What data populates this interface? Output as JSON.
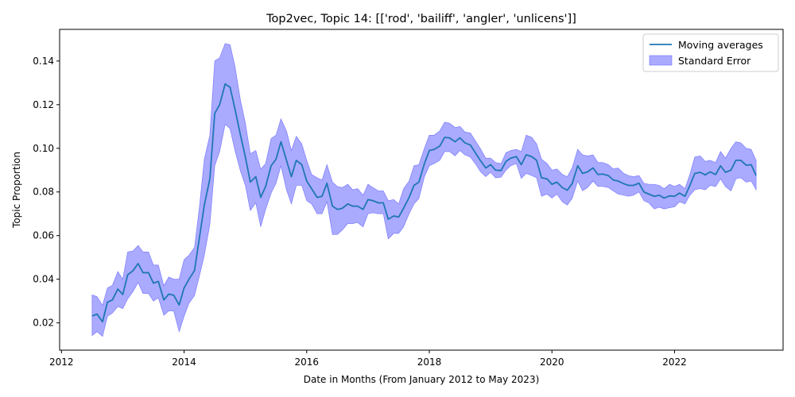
{
  "chart_data": {
    "type": "line",
    "title": "Top2vec, Topic 14: [['rod', 'bailiff', 'angler', 'unlicens']]",
    "xlabel": "Date in Months (From January 2012 to May 2023)",
    "ylabel": "Topic Proportion",
    "xlim": [
      2011.97,
      2023.77
    ],
    "ylim": [
      0.0075,
      0.1545
    ],
    "xticks": [
      2012,
      2014,
      2016,
      2018,
      2020,
      2022
    ],
    "yticks": [
      0.02,
      0.04,
      0.06,
      0.08,
      0.1,
      0.12,
      0.14
    ],
    "ytick_labels": [
      "0.02",
      "0.04",
      "0.06",
      "0.08",
      "0.10",
      "0.12",
      "0.14"
    ],
    "grid": false,
    "legend_position": "top-right",
    "colors": {
      "line": "#1f77b4",
      "band": "#aaaaff",
      "band_edge": "#7070ff"
    },
    "series": [
      {
        "name": "Moving averages",
        "x": [
          2012.5,
          2012.58,
          2012.67,
          2012.75,
          2012.83,
          2012.92,
          2013.0,
          2013.08,
          2013.17,
          2013.25,
          2013.33,
          2013.42,
          2013.5,
          2013.58,
          2013.67,
          2013.75,
          2013.83,
          2013.92,
          2014.0,
          2014.08,
          2014.17,
          2014.25,
          2014.33,
          2014.42,
          2014.5,
          2014.58,
          2014.67,
          2014.75,
          2014.83,
          2014.92,
          2015.0,
          2015.08,
          2015.17,
          2015.25,
          2015.33,
          2015.42,
          2015.5,
          2015.58,
          2015.67,
          2015.75,
          2015.83,
          2015.92,
          2016.0,
          2016.08,
          2016.17,
          2016.25,
          2016.33,
          2016.42,
          2016.5,
          2016.58,
          2016.67,
          2016.75,
          2016.83,
          2016.92,
          2017.0,
          2017.08,
          2017.17,
          2017.25,
          2017.33,
          2017.42,
          2017.5,
          2017.58,
          2017.67,
          2017.75,
          2017.83,
          2017.92,
          2018.0,
          2018.08,
          2018.17,
          2018.25,
          2018.33,
          2018.42,
          2018.5,
          2018.58,
          2018.67,
          2018.75,
          2018.83,
          2018.92,
          2019.0,
          2019.08,
          2019.17,
          2019.25,
          2019.33,
          2019.42,
          2019.5,
          2019.58,
          2019.67,
          2019.75,
          2019.83,
          2019.92,
          2020.0,
          2020.08,
          2020.17,
          2020.25,
          2020.33,
          2020.42,
          2020.5,
          2020.58,
          2020.67,
          2020.75,
          2020.83,
          2020.92,
          2021.0,
          2021.08,
          2021.17,
          2021.25,
          2021.33,
          2021.42,
          2021.5,
          2021.58,
          2021.67,
          2021.75,
          2021.83,
          2021.92,
          2022.0,
          2022.08,
          2022.17,
          2022.25,
          2022.33,
          2022.42,
          2022.5,
          2022.58,
          2022.67,
          2022.75,
          2022.83,
          2022.92,
          2023.0,
          2023.08,
          2023.17,
          2023.25,
          2023.33
        ],
        "y": [
          0.0232,
          0.024,
          0.0205,
          0.0295,
          0.0305,
          0.0355,
          0.033,
          0.042,
          0.044,
          0.0472,
          0.043,
          0.043,
          0.0382,
          0.039,
          0.0305,
          0.0332,
          0.0327,
          0.0282,
          0.036,
          0.04,
          0.044,
          0.059,
          0.074,
          0.086,
          0.116,
          0.12,
          0.1295,
          0.128,
          0.118,
          0.106,
          0.096,
          0.0845,
          0.087,
          0.0775,
          0.0825,
          0.092,
          0.095,
          0.103,
          0.0945,
          0.087,
          0.0945,
          0.0925,
          0.085,
          0.0815,
          0.0775,
          0.078,
          0.084,
          0.0735,
          0.072,
          0.0725,
          0.0745,
          0.0735,
          0.0735,
          0.072,
          0.0765,
          0.076,
          0.075,
          0.075,
          0.0675,
          0.069,
          0.0685,
          0.0725,
          0.0775,
          0.083,
          0.0845,
          0.093,
          0.099,
          0.0995,
          0.101,
          0.105,
          0.1048,
          0.103,
          0.1048,
          0.1025,
          0.1015,
          0.098,
          0.0945,
          0.091,
          0.0925,
          0.09,
          0.0898,
          0.094,
          0.0955,
          0.0962,
          0.0925,
          0.097,
          0.0962,
          0.0945,
          0.0865,
          0.086,
          0.0835,
          0.0845,
          0.082,
          0.0808,
          0.0838,
          0.092,
          0.0885,
          0.0892,
          0.091,
          0.088,
          0.0882,
          0.0875,
          0.0855,
          0.085,
          0.0838,
          0.083,
          0.083,
          0.084,
          0.08,
          0.079,
          0.078,
          0.0785,
          0.0772,
          0.0782,
          0.078,
          0.0795,
          0.078,
          0.083,
          0.0885,
          0.089,
          0.0878,
          0.0892,
          0.088,
          0.092,
          0.089,
          0.09,
          0.0945,
          0.0945,
          0.0922,
          0.0925,
          0.0875
        ]
      },
      {
        "name": "Standard Error",
        "upper": [
          0.0328,
          0.032,
          0.028,
          0.036,
          0.0372,
          0.0435,
          0.04,
          0.0525,
          0.053,
          0.0555,
          0.0525,
          0.0525,
          0.0465,
          0.0465,
          0.037,
          0.041,
          0.04,
          0.04,
          0.049,
          0.051,
          0.0545,
          0.073,
          0.095,
          0.106,
          0.14,
          0.1415,
          0.148,
          0.1475,
          0.1375,
          0.122,
          0.1115,
          0.0975,
          0.099,
          0.0905,
          0.093,
          0.1045,
          0.106,
          0.1135,
          0.108,
          0.099,
          0.1055,
          0.102,
          0.0945,
          0.088,
          0.0865,
          0.0855,
          0.0925,
          0.0845,
          0.0825,
          0.082,
          0.0835,
          0.081,
          0.0815,
          0.0785,
          0.0835,
          0.082,
          0.0805,
          0.0805,
          0.076,
          0.0765,
          0.0745,
          0.0815,
          0.085,
          0.092,
          0.0925,
          0.1,
          0.106,
          0.106,
          0.108,
          0.112,
          0.1115,
          0.1095,
          0.11,
          0.1075,
          0.107,
          0.1035,
          0.1,
          0.0955,
          0.0955,
          0.0935,
          0.093,
          0.098,
          0.099,
          0.0995,
          0.0985,
          0.106,
          0.105,
          0.102,
          0.095,
          0.093,
          0.09,
          0.0905,
          0.088,
          0.087,
          0.091,
          0.0995,
          0.097,
          0.0965,
          0.097,
          0.0935,
          0.0935,
          0.0925,
          0.0905,
          0.091,
          0.0885,
          0.0875,
          0.087,
          0.0875,
          0.084,
          0.0835,
          0.0835,
          0.083,
          0.0815,
          0.0835,
          0.0825,
          0.0835,
          0.0815,
          0.088,
          0.096,
          0.0965,
          0.094,
          0.0945,
          0.0935,
          0.0985,
          0.0955,
          0.1,
          0.103,
          0.1025,
          0.1,
          0.0995,
          0.0945
        ],
        "lower": [
          0.0142,
          0.016,
          0.0138,
          0.023,
          0.0245,
          0.0275,
          0.0265,
          0.031,
          0.0345,
          0.0385,
          0.0335,
          0.0335,
          0.03,
          0.0315,
          0.0235,
          0.0255,
          0.0255,
          0.016,
          0.023,
          0.029,
          0.0325,
          0.0415,
          0.051,
          0.065,
          0.092,
          0.0985,
          0.111,
          0.109,
          0.099,
          0.0895,
          0.083,
          0.0715,
          0.075,
          0.064,
          0.072,
          0.0795,
          0.084,
          0.092,
          0.081,
          0.0745,
          0.083,
          0.083,
          0.076,
          0.0745,
          0.07,
          0.07,
          0.0755,
          0.0605,
          0.0605,
          0.0625,
          0.0655,
          0.0655,
          0.066,
          0.064,
          0.07,
          0.0705,
          0.07,
          0.07,
          0.0585,
          0.061,
          0.061,
          0.064,
          0.07,
          0.0745,
          0.077,
          0.087,
          0.092,
          0.093,
          0.0945,
          0.0985,
          0.0985,
          0.0965,
          0.099,
          0.097,
          0.096,
          0.093,
          0.0895,
          0.087,
          0.089,
          0.0865,
          0.0868,
          0.09,
          0.092,
          0.093,
          0.0862,
          0.0885,
          0.0875,
          0.0865,
          0.078,
          0.079,
          0.0772,
          0.079,
          0.0755,
          0.074,
          0.077,
          0.085,
          0.0805,
          0.082,
          0.085,
          0.0825,
          0.0825,
          0.082,
          0.0805,
          0.079,
          0.0785,
          0.078,
          0.0785,
          0.08,
          0.076,
          0.075,
          0.0722,
          0.073,
          0.0722,
          0.0728,
          0.0732,
          0.0755,
          0.0745,
          0.0785,
          0.081,
          0.0815,
          0.081,
          0.083,
          0.0825,
          0.086,
          0.0825,
          0.0805,
          0.086,
          0.0865,
          0.0845,
          0.085,
          0.081
        ]
      }
    ]
  }
}
